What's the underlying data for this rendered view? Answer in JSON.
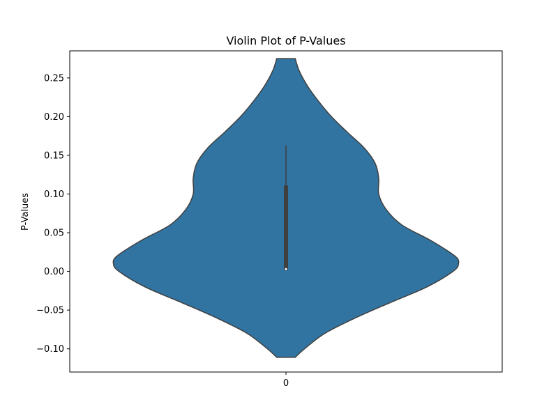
{
  "chart_data": {
    "type": "violin",
    "title": "Violin Plot of P-Values",
    "xlabel": "",
    "ylabel": "P-Values",
    "categories": [
      "0"
    ],
    "ylim": [
      -0.13,
      0.285
    ],
    "yticks": [
      -0.1,
      -0.05,
      0.0,
      0.05,
      0.1,
      0.15,
      0.2,
      0.25
    ],
    "ytick_labels": [
      "−0.10",
      "−0.05",
      "0.00",
      "0.05",
      "0.10",
      "0.15",
      "0.20",
      "0.25"
    ],
    "violin": {
      "y_min": -0.111,
      "y_max": 0.275,
      "density_profile": [
        {
          "y": -0.111,
          "half_width": 0.1
        },
        {
          "y": -0.1,
          "half_width": 0.2
        },
        {
          "y": -0.08,
          "half_width": 0.42
        },
        {
          "y": -0.06,
          "half_width": 0.75
        },
        {
          "y": -0.04,
          "half_width": 1.13
        },
        {
          "y": -0.02,
          "half_width": 1.52
        },
        {
          "y": 0.0,
          "half_width": 1.8
        },
        {
          "y": 0.01,
          "half_width": 1.86
        },
        {
          "y": 0.02,
          "half_width": 1.82
        },
        {
          "y": 0.04,
          "half_width": 1.56
        },
        {
          "y": 0.06,
          "half_width": 1.25
        },
        {
          "y": 0.08,
          "half_width": 1.08
        },
        {
          "y": 0.1,
          "half_width": 1.0
        },
        {
          "y": 0.12,
          "half_width": 1.0
        },
        {
          "y": 0.14,
          "half_width": 0.96
        },
        {
          "y": 0.16,
          "half_width": 0.84
        },
        {
          "y": 0.18,
          "half_width": 0.66
        },
        {
          "y": 0.2,
          "half_width": 0.49
        },
        {
          "y": 0.22,
          "half_width": 0.35
        },
        {
          "y": 0.24,
          "half_width": 0.23
        },
        {
          "y": 0.26,
          "half_width": 0.14
        },
        {
          "y": 0.275,
          "half_width": 0.1
        }
      ],
      "box": {
        "q1": 0.002,
        "median": 0.003,
        "q3": 0.111,
        "whisker_low": 0.001,
        "whisker_high": 0.163
      }
    },
    "colors": {
      "fill": "#3274a1",
      "edge": "#3f3f3f",
      "inner": "#3f3f3f",
      "median": "#ffffff"
    },
    "grid": false
  }
}
